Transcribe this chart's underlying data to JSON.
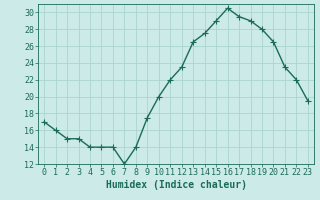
{
  "x": [
    0,
    1,
    2,
    3,
    4,
    5,
    6,
    7,
    8,
    9,
    10,
    11,
    12,
    13,
    14,
    15,
    16,
    17,
    18,
    19,
    20,
    21,
    22,
    23
  ],
  "y": [
    17,
    16,
    15,
    15,
    14,
    14,
    14,
    12,
    14,
    17.5,
    20,
    22,
    23.5,
    26.5,
    27.5,
    29,
    30.5,
    29.5,
    29,
    28,
    26.5,
    23.5,
    22,
    19.5
  ],
  "line_color": "#1a6b5a",
  "marker": "+",
  "marker_size": 4,
  "bg_color": "#cceae7",
  "grid_color": "#aad4d0",
  "xlabel": "Humidex (Indice chaleur)",
  "ylim": [
    12,
    31
  ],
  "xlim": [
    -0.5,
    23.5
  ],
  "yticks": [
    12,
    14,
    16,
    18,
    20,
    22,
    24,
    26,
    28,
    30
  ],
  "xticks": [
    0,
    1,
    2,
    3,
    4,
    5,
    6,
    7,
    8,
    9,
    10,
    11,
    12,
    13,
    14,
    15,
    16,
    17,
    18,
    19,
    20,
    21,
    22,
    23
  ],
  "tick_color": "#1a6b5a",
  "label_fontsize": 7,
  "tick_fontsize": 6,
  "linewidth": 1.0,
  "markeredgewidth": 0.8
}
